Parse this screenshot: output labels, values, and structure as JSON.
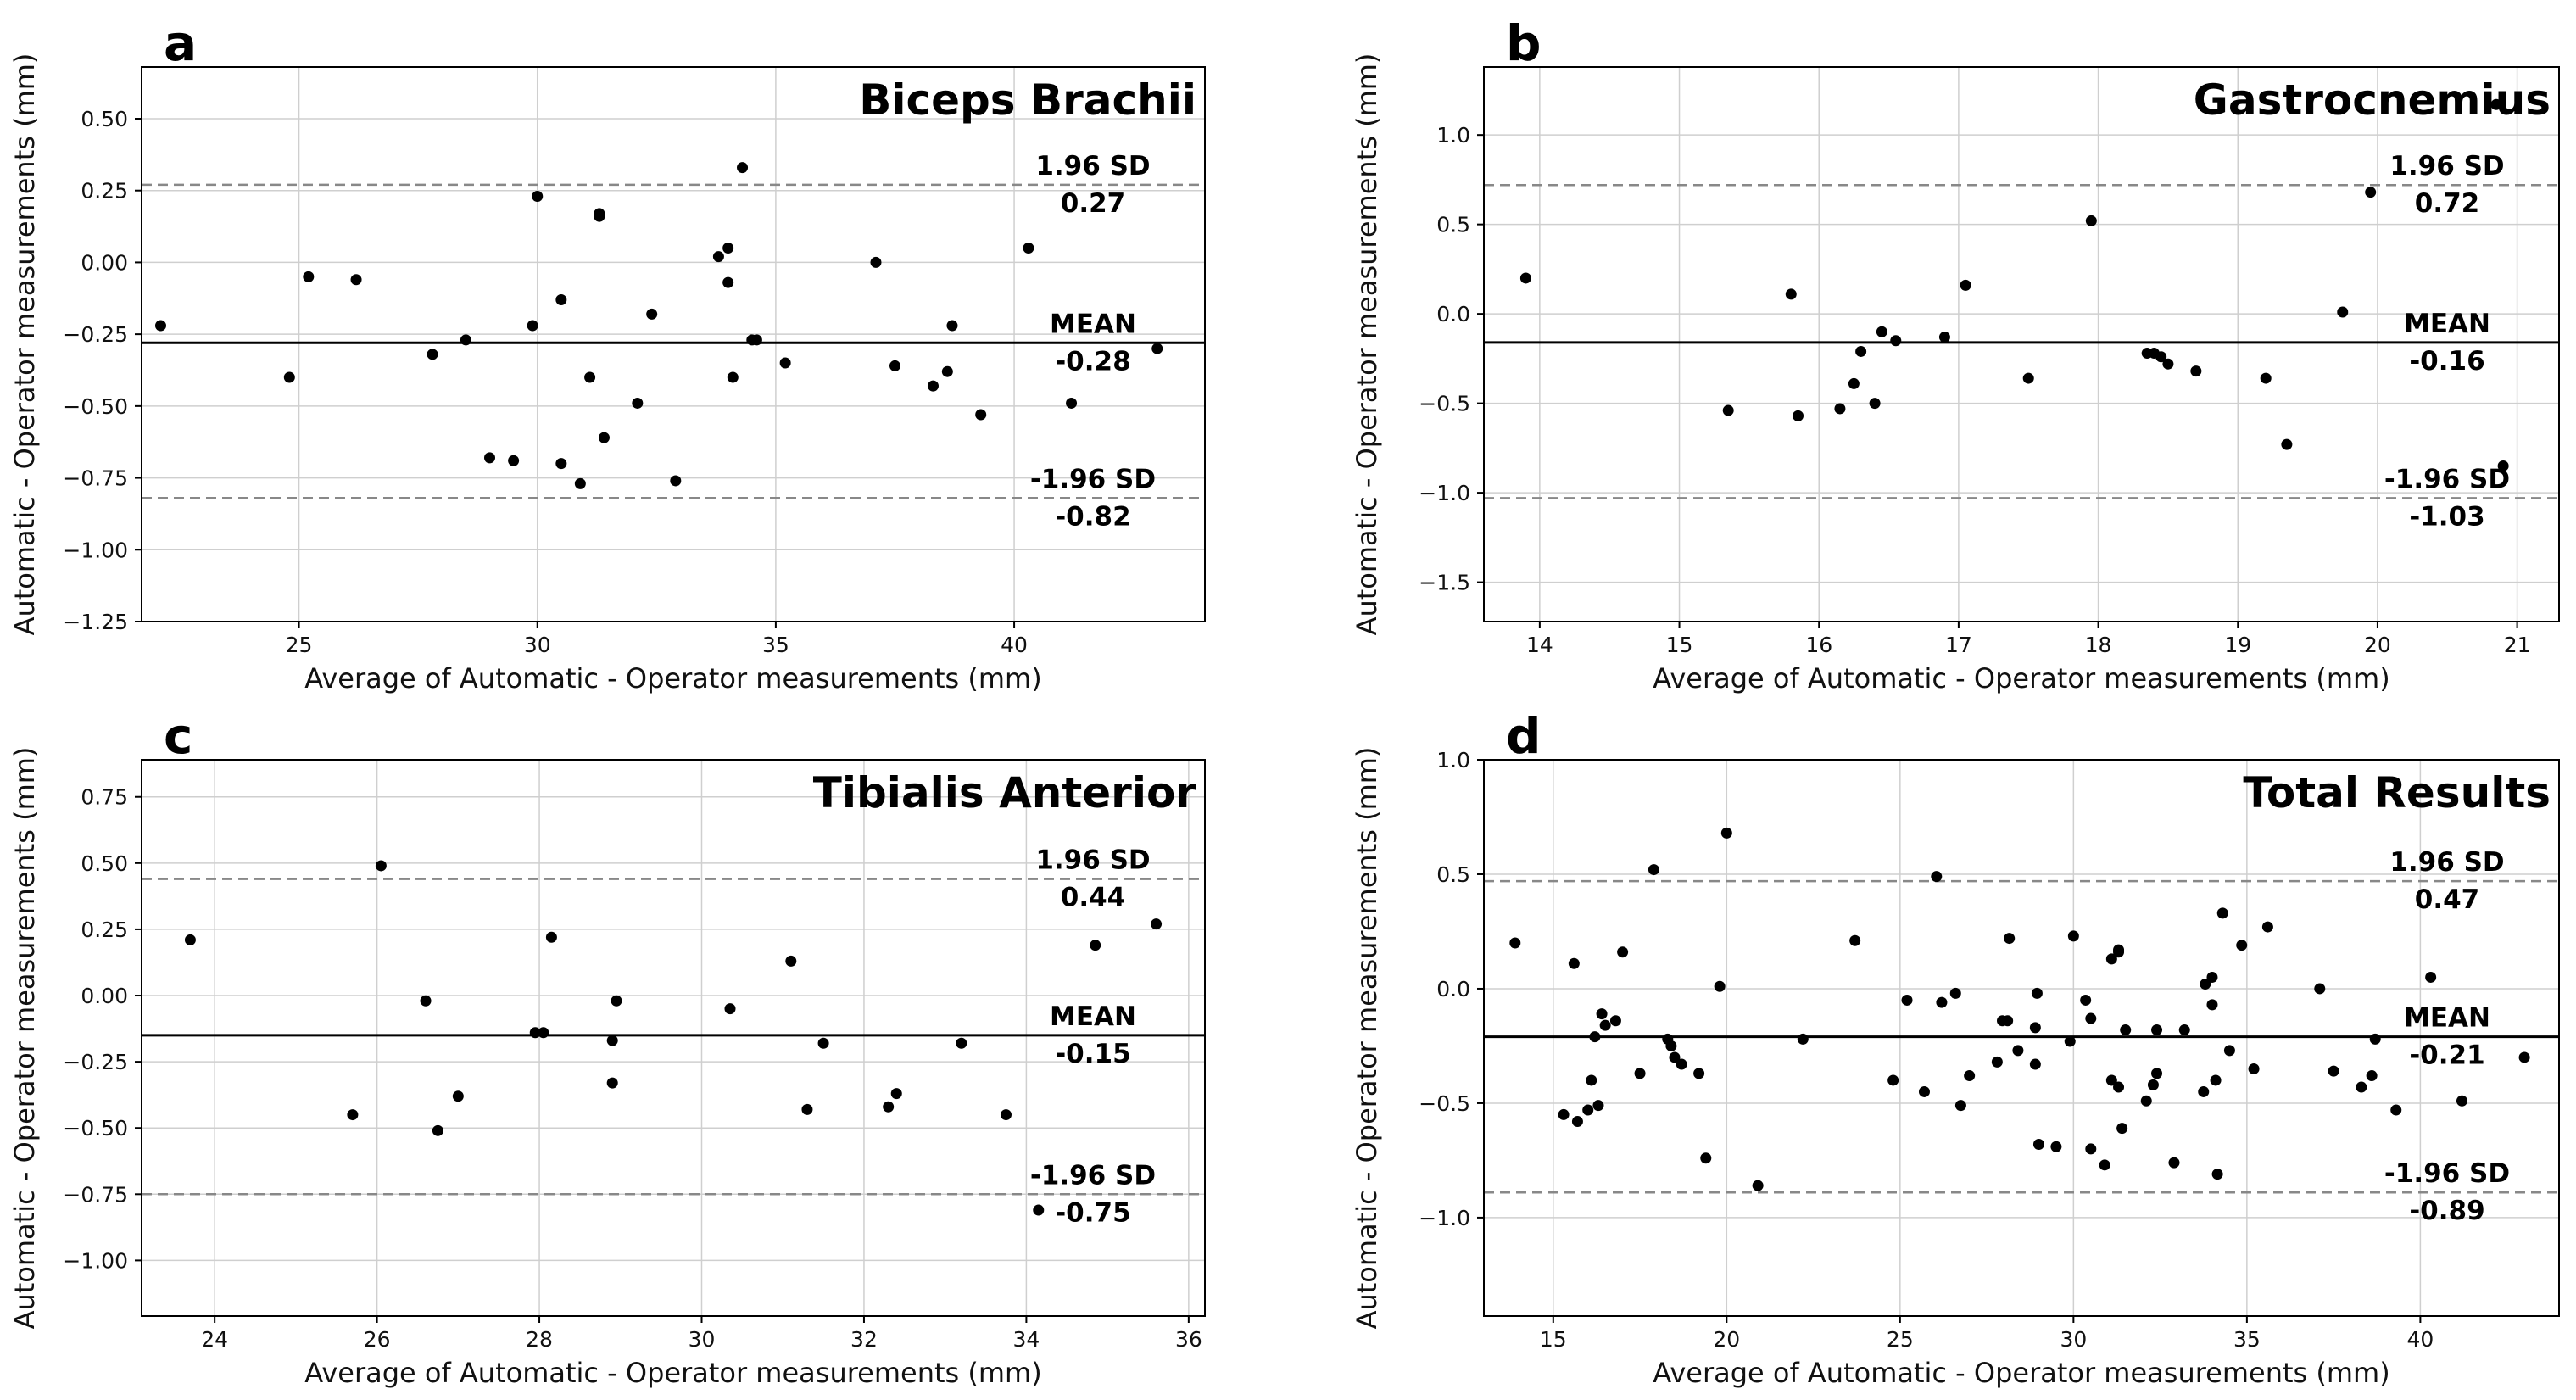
{
  "figure": {
    "xlabel": "Average of Automatic - Operator measurements (mm)",
    "ylabel": "Automatic - Operator measurements (mm)"
  },
  "chart_data": [
    {
      "panel": "a",
      "type": "scatter",
      "title": "Biceps Brachii",
      "xlabel": "Average of Automatic - Operator measurements (mm)",
      "ylabel": "Automatic - Operator measurements (mm)",
      "xlim": [
        21.7,
        44.0
      ],
      "ylim": [
        -1.25,
        0.68
      ],
      "xticks": [
        25,
        30,
        35,
        40
      ],
      "xtick_labels": [
        "25",
        "30",
        "35",
        "40"
      ],
      "yticks": [
        -1.25,
        -1.0,
        -0.75,
        -0.5,
        -0.25,
        0.0,
        0.25,
        0.5
      ],
      "ytick_labels": [
        "−1.25",
        "−1.00",
        "−0.75",
        "−0.50",
        "−0.25",
        "0.00",
        "0.25",
        "0.50"
      ],
      "grid": true,
      "mean": -0.28,
      "upper_loa": 0.27,
      "lower_loa": -0.82,
      "mean_label": "MEAN",
      "mean_value_label": "-0.28",
      "upper_label": "1.96 SD",
      "upper_value_label": "0.27",
      "lower_label": "-1.96 SD",
      "lower_value_label": "-0.82",
      "points": [
        [
          22.1,
          -0.22
        ],
        [
          24.8,
          -0.4
        ],
        [
          25.2,
          -0.05
        ],
        [
          26.2,
          -0.06
        ],
        [
          27.8,
          -0.32
        ],
        [
          28.5,
          -0.27
        ],
        [
          29.0,
          -0.68
        ],
        [
          29.5,
          -0.69
        ],
        [
          29.9,
          -0.22
        ],
        [
          30.0,
          0.23
        ],
        [
          30.5,
          -0.13
        ],
        [
          30.5,
          -0.7
        ],
        [
          30.9,
          -0.77
        ],
        [
          31.1,
          -0.4
        ],
        [
          31.3,
          0.16
        ],
        [
          31.3,
          0.17
        ],
        [
          31.4,
          -0.61
        ],
        [
          32.1,
          -0.49
        ],
        [
          32.4,
          -0.18
        ],
        [
          32.9,
          -0.76
        ],
        [
          33.8,
          0.02
        ],
        [
          34.0,
          0.05
        ],
        [
          34.0,
          -0.07
        ],
        [
          34.1,
          -0.4
        ],
        [
          34.3,
          0.33
        ],
        [
          34.5,
          -0.27
        ],
        [
          34.6,
          -0.27
        ],
        [
          35.2,
          -0.35
        ],
        [
          37.1,
          0.0
        ],
        [
          37.5,
          -0.36
        ],
        [
          38.3,
          -0.43
        ],
        [
          38.6,
          -0.38
        ],
        [
          38.7,
          -0.22
        ],
        [
          39.3,
          -0.53
        ],
        [
          40.3,
          0.05
        ],
        [
          41.2,
          -0.49
        ],
        [
          43.0,
          -0.3
        ]
      ]
    },
    {
      "panel": "b",
      "type": "scatter",
      "title": "Gastrocnemius",
      "xlabel": "Average of Automatic - Operator measurements (mm)",
      "ylabel": "Automatic - Operator measurements (mm)",
      "xlim": [
        13.6,
        21.3
      ],
      "ylim": [
        -1.72,
        1.38
      ],
      "xticks": [
        14,
        15,
        16,
        17,
        18,
        19,
        20,
        21
      ],
      "xtick_labels": [
        "14",
        "15",
        "16",
        "17",
        "18",
        "19",
        "20",
        "21"
      ],
      "yticks": [
        -1.5,
        -1.0,
        -0.5,
        0.0,
        0.5,
        1.0
      ],
      "ytick_labels": [
        "−1.5",
        "−1.0",
        "−0.5",
        "0.0",
        "0.5",
        "1.0"
      ],
      "grid": true,
      "mean": -0.16,
      "upper_loa": 0.72,
      "lower_loa": -1.03,
      "mean_label": "MEAN",
      "mean_value_label": "-0.16",
      "upper_label": "1.96 SD",
      "upper_value_label": "0.72",
      "lower_label": "-1.96 SD",
      "lower_value_label": "-1.03",
      "points": [
        [
          13.9,
          0.2
        ],
        [
          15.35,
          -0.54
        ],
        [
          15.8,
          0.11
        ],
        [
          15.85,
          -0.57
        ],
        [
          16.15,
          -0.53
        ],
        [
          16.25,
          -0.39
        ],
        [
          16.3,
          -0.21
        ],
        [
          16.4,
          -0.5
        ],
        [
          16.45,
          -0.1
        ],
        [
          16.55,
          -0.15
        ],
        [
          16.9,
          -0.13
        ],
        [
          17.05,
          0.16
        ],
        [
          17.5,
          -0.36
        ],
        [
          17.95,
          0.52
        ],
        [
          18.35,
          -0.22
        ],
        [
          18.4,
          -0.22
        ],
        [
          18.45,
          -0.24
        ],
        [
          18.5,
          -0.28
        ],
        [
          18.7,
          -0.32
        ],
        [
          19.2,
          -0.36
        ],
        [
          19.35,
          -0.73
        ],
        [
          19.75,
          0.01
        ],
        [
          19.95,
          0.68
        ],
        [
          20.85,
          1.17
        ],
        [
          20.9,
          -0.85
        ]
      ]
    },
    {
      "panel": "c",
      "type": "scatter",
      "title": "Tibialis Anterior",
      "xlabel": "Average of Automatic - Operator measurements (mm)",
      "ylabel": "Automatic - Operator measurements (mm)",
      "xlim": [
        23.1,
        36.2
      ],
      "ylim": [
        -1.21,
        0.89
      ],
      "xticks": [
        24,
        26,
        28,
        30,
        32,
        34,
        36
      ],
      "xtick_labels": [
        "24",
        "26",
        "28",
        "30",
        "32",
        "34",
        "36"
      ],
      "yticks": [
        -1.0,
        -0.75,
        -0.5,
        -0.25,
        0.0,
        0.25,
        0.5,
        0.75
      ],
      "ytick_labels": [
        "−1.00",
        "−0.75",
        "−0.50",
        "−0.25",
        "0.00",
        "0.25",
        "0.50",
        "0.75"
      ],
      "grid": true,
      "mean": -0.15,
      "upper_loa": 0.44,
      "lower_loa": -0.75,
      "mean_label": "MEAN",
      "mean_value_label": "-0.15",
      "upper_label": "1.96 SD",
      "upper_value_label": "0.44",
      "lower_label": "-1.96 SD",
      "lower_value_label": "-0.75",
      "points": [
        [
          23.7,
          0.21
        ],
        [
          25.7,
          -0.45
        ],
        [
          26.05,
          0.49
        ],
        [
          26.6,
          -0.02
        ],
        [
          26.75,
          -0.51
        ],
        [
          27.0,
          -0.38
        ],
        [
          27.95,
          -0.14
        ],
        [
          28.05,
          -0.14
        ],
        [
          28.15,
          0.22
        ],
        [
          28.9,
          -0.33
        ],
        [
          28.9,
          -0.17
        ],
        [
          28.95,
          -0.02
        ],
        [
          30.35,
          -0.05
        ],
        [
          31.1,
          0.13
        ],
        [
          31.3,
          -0.43
        ],
        [
          31.5,
          -0.18
        ],
        [
          32.3,
          -0.42
        ],
        [
          32.4,
          -0.37
        ],
        [
          33.2,
          -0.18
        ],
        [
          33.75,
          -0.45
        ],
        [
          34.15,
          -0.81
        ],
        [
          34.85,
          0.19
        ],
        [
          35.6,
          0.27
        ]
      ]
    },
    {
      "panel": "d",
      "type": "scatter",
      "title": "Total Results",
      "xlabel": "Average of Automatic - Operator measurements (mm)",
      "ylabel": "Automatic - Operator measurements (mm)",
      "xlim": [
        13.0,
        44.0
      ],
      "ylim": [
        -1.43,
        1.0
      ],
      "xticks": [
        15,
        20,
        25,
        30,
        35,
        40
      ],
      "xtick_labels": [
        "15",
        "20",
        "25",
        "30",
        "35",
        "40"
      ],
      "yticks": [
        -1.0,
        -0.5,
        0.0,
        0.5,
        1.0
      ],
      "ytick_labels": [
        "−1.0",
        "−0.5",
        "0.0",
        "0.5",
        "1.0"
      ],
      "grid": true,
      "mean": -0.21,
      "upper_loa": 0.47,
      "lower_loa": -0.89,
      "mean_label": "MEAN",
      "mean_value_label": "-0.21",
      "upper_label": "1.96 SD",
      "upper_value_label": "0.47",
      "lower_label": "-1.96 SD",
      "lower_value_label": "-0.89",
      "points": [
        [
          13.9,
          0.2
        ],
        [
          15.3,
          -0.55
        ],
        [
          15.6,
          0.11
        ],
        [
          15.7,
          -0.58
        ],
        [
          16.0,
          -0.53
        ],
        [
          16.1,
          -0.4
        ],
        [
          16.2,
          -0.21
        ],
        [
          16.3,
          -0.51
        ],
        [
          16.4,
          -0.11
        ],
        [
          16.5,
          -0.16
        ],
        [
          16.8,
          -0.14
        ],
        [
          17.0,
          0.16
        ],
        [
          17.5,
          -0.37
        ],
        [
          17.9,
          0.52
        ],
        [
          18.3,
          -0.22
        ],
        [
          18.4,
          -0.25
        ],
        [
          18.5,
          -0.3
        ],
        [
          18.7,
          -0.33
        ],
        [
          19.2,
          -0.37
        ],
        [
          19.4,
          -0.74
        ],
        [
          19.8,
          0.01
        ],
        [
          20.0,
          0.68
        ],
        [
          20.9,
          -0.86
        ],
        [
          22.2,
          -0.22
        ],
        [
          23.7,
          0.21
        ],
        [
          24.8,
          -0.4
        ],
        [
          25.2,
          -0.05
        ],
        [
          25.7,
          -0.45
        ],
        [
          26.05,
          0.49
        ],
        [
          26.2,
          -0.06
        ],
        [
          26.6,
          -0.02
        ],
        [
          26.75,
          -0.51
        ],
        [
          27.0,
          -0.38
        ],
        [
          27.8,
          -0.32
        ],
        [
          27.95,
          -0.14
        ],
        [
          28.1,
          -0.14
        ],
        [
          28.15,
          0.22
        ],
        [
          28.4,
          -0.27
        ],
        [
          28.9,
          -0.33
        ],
        [
          28.9,
          -0.17
        ],
        [
          28.95,
          -0.02
        ],
        [
          29.0,
          -0.68
        ],
        [
          29.5,
          -0.69
        ],
        [
          29.9,
          -0.23
        ],
        [
          30.0,
          0.23
        ],
        [
          30.35,
          -0.05
        ],
        [
          30.5,
          -0.13
        ],
        [
          30.5,
          -0.7
        ],
        [
          30.9,
          -0.77
        ],
        [
          31.1,
          -0.4
        ],
        [
          31.1,
          0.13
        ],
        [
          31.3,
          -0.43
        ],
        [
          31.3,
          0.16
        ],
        [
          31.3,
          0.17
        ],
        [
          31.4,
          -0.61
        ],
        [
          31.5,
          -0.18
        ],
        [
          32.1,
          -0.49
        ],
        [
          32.3,
          -0.42
        ],
        [
          32.4,
          -0.37
        ],
        [
          32.4,
          -0.18
        ],
        [
          32.9,
          -0.76
        ],
        [
          33.2,
          -0.18
        ],
        [
          33.75,
          -0.45
        ],
        [
          33.8,
          0.02
        ],
        [
          34.0,
          0.05
        ],
        [
          34.0,
          -0.07
        ],
        [
          34.1,
          -0.4
        ],
        [
          34.15,
          -0.81
        ],
        [
          34.3,
          0.33
        ],
        [
          34.5,
          -0.27
        ],
        [
          34.85,
          0.19
        ],
        [
          35.2,
          -0.35
        ],
        [
          35.6,
          0.27
        ],
        [
          37.1,
          0.0
        ],
        [
          37.5,
          -0.36
        ],
        [
          38.3,
          -0.43
        ],
        [
          38.6,
          -0.38
        ],
        [
          38.7,
          -0.22
        ],
        [
          39.3,
          -0.53
        ],
        [
          40.3,
          0.05
        ],
        [
          41.2,
          -0.49
        ],
        [
          43.0,
          -0.3
        ]
      ]
    }
  ]
}
